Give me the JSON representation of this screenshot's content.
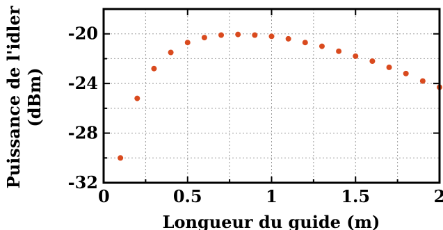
{
  "chart_data": {
    "type": "scatter",
    "xlabel": "Longueur du guide (m)",
    "ylabel_line1": "Puissance de l'idler",
    "ylabel_line2": "(dBm)",
    "xlim": [
      0,
      2
    ],
    "ylim": [
      -32,
      -18
    ],
    "xticks": [
      0,
      0.5,
      1,
      1.5,
      2
    ],
    "xtick_labels": [
      "0",
      "0.5",
      "1",
      "1.5",
      "2"
    ],
    "yticks": [
      -32,
      -28,
      -24,
      -20
    ],
    "ytick_labels": [
      "-32",
      "-28",
      "-24",
      "-20"
    ],
    "grid": true,
    "marker_color": "#d94a1e",
    "series": [
      {
        "x": [
          0.1,
          0.2,
          0.3,
          0.4,
          0.5,
          0.6,
          0.7,
          0.8,
          0.9,
          1.0,
          1.1,
          1.2,
          1.3,
          1.4,
          1.5,
          1.6,
          1.7,
          1.8,
          1.9,
          2.0
        ],
        "y": [
          -30.0,
          -25.2,
          -22.8,
          -21.5,
          -20.7,
          -20.3,
          -20.1,
          -20.05,
          -20.1,
          -20.2,
          -20.4,
          -20.7,
          -21.0,
          -21.4,
          -21.8,
          -22.2,
          -22.7,
          -23.2,
          -23.8,
          -24.3
        ]
      }
    ]
  }
}
